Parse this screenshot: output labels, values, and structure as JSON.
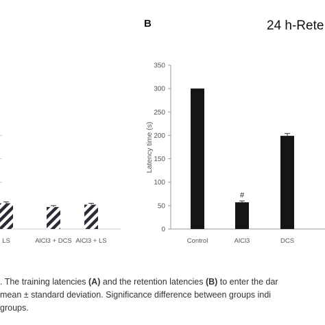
{
  "panel_b_label": "B",
  "panel_b_title": "24 h-Rete",
  "panel_a_y_tick_labels": [
    "",
    "",
    "",
    "",
    ""
  ],
  "chart_data": [
    {
      "type": "bar",
      "panel": "A (partially visible)",
      "categories": [
        "LS",
        "AlCl3 + DCS",
        "AlCl3 + LS"
      ],
      "values": [
        55,
        47,
        52
      ],
      "errors": [
        3,
        3,
        3
      ],
      "ylim": [
        0,
        350
      ],
      "bar_pattern": "diagonal-stripes",
      "colors": {
        "bar": "#2b2b38",
        "error": "#333333"
      }
    },
    {
      "type": "bar",
      "panel": "B",
      "title": "24 h-Rete",
      "ylabel": "Latency time (s)",
      "categories": [
        "Control",
        "AlCl3",
        "DCS"
      ],
      "values": [
        300,
        57,
        199
      ],
      "errors": [
        0,
        3,
        5
      ],
      "annotations": [
        "",
        "#",
        ""
      ],
      "ylim": [
        0,
        350
      ],
      "yticks": [
        0,
        50,
        100,
        150,
        200,
        250,
        300,
        350
      ],
      "grid": false,
      "colors": {
        "bar": "#151515",
        "error": "#333333",
        "axis": "#9a9a9a"
      }
    }
  ],
  "caption": {
    "line1_a": ". The training latencies ",
    "line1_b": "(A)",
    "line1_c": " and the retention latencies ",
    "line1_d": "(B)",
    "line1_e": " to enter the dar",
    "line2": " mean ± standard deviation. Significance difference between groups indi",
    "line3": "groups."
  }
}
